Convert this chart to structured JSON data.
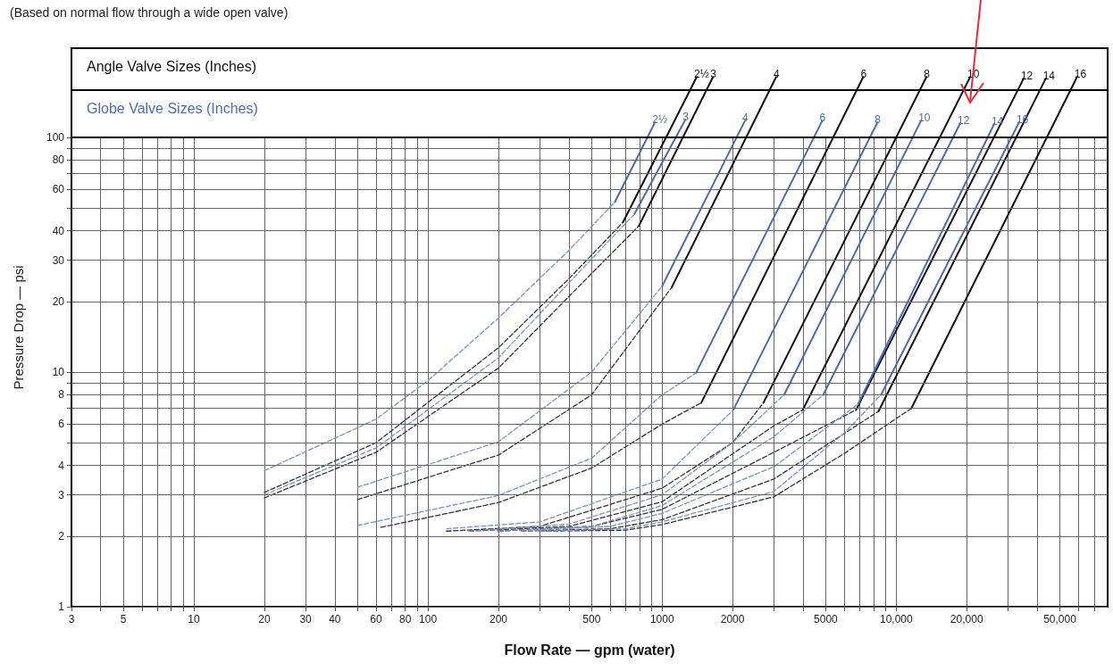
{
  "chart_data": {
    "type": "line",
    "title": "(Based on normal flow through a wide open valve)",
    "xlabel": "Flow Rate — gpm (water)",
    "ylabel": "Pressure Drop — psi",
    "annotations": [
      "Angle Valve Sizes (Inches)",
      "Globe Valve Sizes (Inches)"
    ],
    "log": "xy",
    "grid": true,
    "legend": false,
    "marker": "none",
    "xlim": [
      3,
      80000
    ],
    "ylim": [
      1,
      240
    ],
    "xticks": [
      3,
      {
        "value": 4,
        "label": null
      },
      5,
      {
        "value": 6,
        "label": null
      },
      {
        "value": 7,
        "label": null
      },
      {
        "value": 8,
        "label": null
      },
      {
        "value": 9,
        "label": null
      },
      10,
      20,
      30,
      40,
      {
        "value": 50,
        "label": null
      },
      60,
      {
        "value": 70,
        "label": null
      },
      80,
      {
        "value": 90,
        "label": null
      },
      100,
      200,
      {
        "value": 300,
        "label": null
      },
      {
        "value": 400,
        "label": null
      },
      500,
      {
        "value": 600,
        "label": null
      },
      {
        "value": 700,
        "label": null
      },
      {
        "value": 800,
        "label": null
      },
      {
        "value": 900,
        "label": null
      },
      1000,
      2000,
      {
        "value": 3000,
        "label": null
      },
      {
        "value": 4000,
        "label": null
      },
      5000,
      {
        "value": 6000,
        "label": null
      },
      {
        "value": 7000,
        "label": null
      },
      {
        "value": 8000,
        "label": null
      },
      {
        "value": 9000,
        "label": null
      },
      {
        "value": 10000,
        "label": "10,000"
      },
      {
        "value": 20000,
        "label": "20,000"
      },
      {
        "value": 30000,
        "label": null
      },
      {
        "value": 40000,
        "label": null
      },
      {
        "value": 50000,
        "label": "50,000"
      },
      {
        "value": 60000,
        "label": null
      },
      {
        "value": 70000,
        "label": null
      }
    ],
    "yticks": [
      1,
      2,
      3,
      4,
      {
        "value": 5,
        "label": null
      },
      6,
      {
        "value": 7,
        "label": null
      },
      8,
      {
        "value": 9,
        "label": null
      },
      10,
      20,
      30,
      40,
      {
        "value": 50,
        "label": null
      },
      60,
      {
        "value": 70,
        "label": null
      },
      80,
      {
        "value": 90,
        "label": null
      },
      100
    ],
    "ref_lines": [
      {
        "axis": "y",
        "value": 100,
        "color": "#000000"
      },
      {
        "axis": "y",
        "value": 160,
        "color": "#000000"
      }
    ],
    "bands": [
      {
        "axis": "y",
        "from": 100,
        "to": 240,
        "color": "#ffffff"
      }
    ],
    "series": [
      {
        "name": "2½",
        "color": "#111111",
        "line_style": "solid",
        "x": [
          681,
          1406
        ],
        "values": [
          43.5,
          181
        ]
      },
      {
        "name": "3",
        "color": "#111111",
        "line_style": "solid",
        "x": [
          796,
          1650
        ],
        "values": [
          42,
          181
        ]
      },
      {
        "name": "4",
        "color": "#111111",
        "line_style": "solid",
        "x": [
          1100,
          3070
        ],
        "values": [
          23,
          181
        ]
      },
      {
        "name": "6",
        "color": "#111111",
        "line_style": "solid",
        "x": [
          1470,
          7230
        ],
        "values": [
          7.4,
          181
        ]
      },
      {
        "name": "8",
        "color": "#111111",
        "line_style": "solid",
        "x": [
          2710,
          13460
        ],
        "values": [
          7.4,
          181
        ]
      },
      {
        "name": "10",
        "color": "#111111",
        "line_style": "solid",
        "x": [
          3990,
          20700
        ],
        "values": [
          6.9,
          181
        ]
      },
      {
        "name": "12",
        "color": "#111111",
        "line_style": "solid",
        "x": [
          6740,
          35000
        ],
        "values": [
          6.9,
          178
        ]
      },
      {
        "name": "14",
        "color": "#111111",
        "line_style": "solid",
        "x": [
          8400,
          43500
        ],
        "values": [
          6.8,
          178
        ]
      },
      {
        "name": "16",
        "color": "#111111",
        "line_style": "solid",
        "x": [
          11600,
          59200
        ],
        "values": [
          7.0,
          181
        ]
      },
      {
        "name": "2½",
        "color": "#4a6db0",
        "line_style": "solid",
        "x": [
          628,
          933
        ],
        "values": [
          53,
          116
        ]
      },
      {
        "name": "3",
        "color": "#4a6db0",
        "line_style": "solid",
        "x": [
          760,
          1257
        ],
        "values": [
          47,
          119
        ]
      },
      {
        "name": "4",
        "color": "#4a6db0",
        "line_style": "solid",
        "x": [
          1000,
          2260
        ],
        "values": [
          23.2,
          118
        ]
      },
      {
        "name": "6",
        "color": "#4a6db0",
        "line_style": "solid",
        "x": [
          1395,
          4835
        ],
        "values": [
          9.9,
          118
        ]
      },
      {
        "name": "8",
        "color": "#4a6db0",
        "line_style": "solid",
        "x": [
          2015,
          8320
        ],
        "values": [
          6.9,
          116
        ]
      },
      {
        "name": "10",
        "color": "#4a6db0",
        "line_style": "solid",
        "x": [
          3320,
          12770
        ],
        "values": [
          8.0,
          118
        ]
      },
      {
        "name": "12",
        "color": "#4a6db0",
        "line_style": "solid",
        "x": [
          4875,
          18780
        ],
        "values": [
          8.0,
          115
        ]
      },
      {
        "name": "14",
        "color": "#4a6db0",
        "line_style": "solid",
        "x": [
          6870,
          26200
        ],
        "values": [
          7.3,
          114
        ]
      },
      {
        "name": "16",
        "color": "#4a6db0",
        "line_style": "solid",
        "x": [
          8610,
          33500
        ],
        "values": [
          8.0,
          116
        ]
      },
      {
        "color": "#333333",
        "line_style": "dashed",
        "x": [
          20,
          60,
          200,
          400,
          681
        ],
        "values": [
          3.07,
          5.0,
          12.7,
          25,
          43.5
        ]
      },
      {
        "color": "#333333",
        "line_style": "dashed",
        "x": [
          20,
          60,
          200,
          400,
          796
        ],
        "values": [
          2.91,
          4.55,
          10.4,
          21,
          42
        ]
      },
      {
        "color": "#333333",
        "line_style": "dashed",
        "x": [
          50,
          200,
          500,
          1100
        ],
        "values": [
          2.86,
          4.43,
          8,
          23
        ]
      },
      {
        "color": "#333333",
        "line_style": "dashed",
        "x": [
          63,
          200,
          500,
          1000,
          1470
        ],
        "values": [
          2.18,
          2.78,
          3.9,
          6,
          7.4
        ]
      },
      {
        "color": "#333333",
        "line_style": "dashed",
        "x": [
          120,
          300,
          1000,
          2000,
          2710
        ],
        "values": [
          2.1,
          2.2,
          3.2,
          5.0,
          7.4
        ]
      },
      {
        "color": "#333333",
        "line_style": "dashed",
        "x": [
          150,
          400,
          1000,
          3000,
          3990
        ],
        "values": [
          2.1,
          2.2,
          2.8,
          5.9,
          6.9
        ]
      },
      {
        "color": "#333333",
        "line_style": "dashed",
        "x": [
          200,
          500,
          1000,
          3000,
          6740
        ],
        "values": [
          2.1,
          2.2,
          2.6,
          4.55,
          6.9
        ]
      },
      {
        "color": "#333333",
        "line_style": "dashed",
        "x": [
          250,
          600,
          1000,
          3000,
          8400
        ],
        "values": [
          2.1,
          2.15,
          2.35,
          3.5,
          6.8
        ]
      },
      {
        "color": "#333333",
        "line_style": "dashed",
        "x": [
          300,
          700,
          1000,
          3000,
          6000,
          11600
        ],
        "values": [
          2.1,
          2.12,
          2.24,
          2.94,
          4.5,
          7.0
        ]
      },
      {
        "color": "#7a92c6",
        "line_style": "dashed",
        "x": [
          20,
          60,
          100,
          200,
          400,
          628
        ],
        "values": [
          3.8,
          6.3,
          9.2,
          17,
          33,
          53
        ]
      },
      {
        "color": "#7a92c6",
        "line_style": "dashed",
        "x": [
          20,
          60,
          200,
          400,
          760
        ],
        "values": [
          3.0,
          4.75,
          11.5,
          24,
          47
        ]
      },
      {
        "color": "#7a92c6",
        "line_style": "dashed",
        "x": [
          50,
          200,
          500,
          1000
        ],
        "values": [
          3.23,
          5.05,
          10,
          23.2
        ]
      },
      {
        "color": "#7a92c6",
        "line_style": "dashed",
        "x": [
          50,
          200,
          500,
          1000,
          1395
        ],
        "values": [
          2.22,
          2.98,
          4.3,
          8,
          9.9
        ]
      },
      {
        "color": "#7a92c6",
        "line_style": "dashed",
        "x": [
          120,
          300,
          1000,
          2015
        ],
        "values": [
          2.15,
          2.3,
          3.5,
          6.9
        ]
      },
      {
        "color": "#7a92c6",
        "line_style": "dashed",
        "x": [
          150,
          400,
          1000,
          2000,
          3320
        ],
        "values": [
          2.1,
          2.25,
          3.0,
          5.0,
          8.0
        ]
      },
      {
        "color": "#7a92c6",
        "line_style": "dashed",
        "x": [
          200,
          500,
          1000,
          3000,
          4875
        ],
        "values": [
          2.1,
          2.2,
          2.7,
          5.3,
          8.0
        ]
      },
      {
        "color": "#7a92c6",
        "line_style": "dashed",
        "x": [
          250,
          600,
          1000,
          3000,
          6870
        ],
        "values": [
          2.1,
          2.2,
          2.5,
          3.95,
          7.3
        ]
      },
      {
        "color": "#7a92c6",
        "line_style": "dashed",
        "x": [
          300,
          700,
          1000,
          3000,
          6000,
          8610
        ],
        "values": [
          2.1,
          2.15,
          2.3,
          3.1,
          5.5,
          8.0
        ]
      }
    ]
  }
}
